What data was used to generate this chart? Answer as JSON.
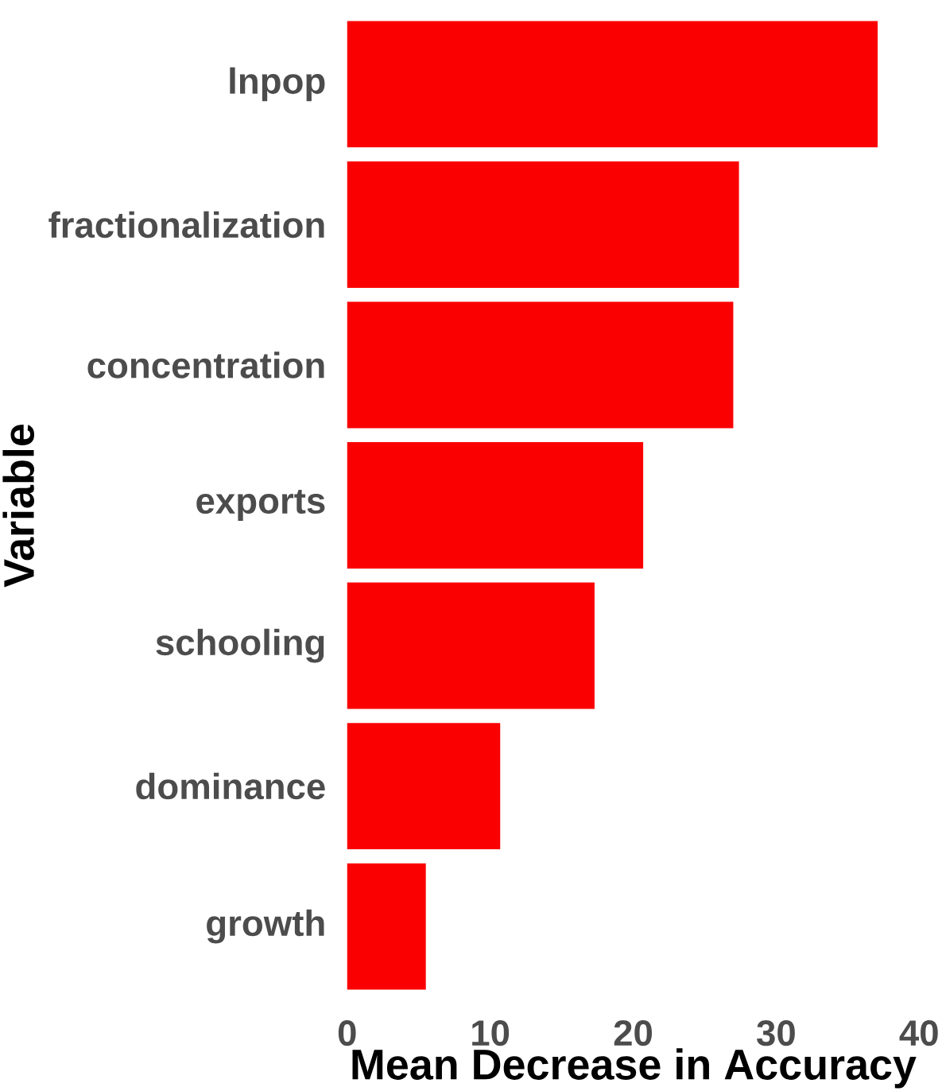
{
  "chart_data": {
    "type": "bar",
    "orientation": "horizontal",
    "xlabel": "Mean Decrease in Accuracy",
    "ylabel": "Variable",
    "categories": [
      "lnpop",
      "fractionalization",
      "concentration",
      "exports",
      "schooling",
      "dominance",
      "growth"
    ],
    "values": [
      37.1,
      27.4,
      27.0,
      20.7,
      17.3,
      10.7,
      5.5
    ],
    "color": "#fa0000",
    "xlim": [
      0,
      40
    ],
    "xticks": [
      0,
      10,
      20,
      30,
      40
    ]
  }
}
